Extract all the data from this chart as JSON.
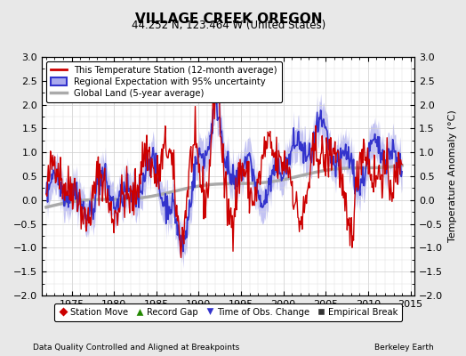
{
  "title": "VILLAGE CREEK OREGON",
  "subtitle": "44.252 N, 123.464 W (United States)",
  "ylabel": "Temperature Anomaly (°C)",
  "xlabel_bottom_left": "Data Quality Controlled and Aligned at Breakpoints",
  "xlabel_bottom_right": "Berkeley Earth",
  "xlim": [
    1971.5,
    2015.5
  ],
  "ylim": [
    -2.0,
    3.0
  ],
  "yticks": [
    -2,
    -1.5,
    -1,
    -0.5,
    0,
    0.5,
    1,
    1.5,
    2,
    2.5,
    3
  ],
  "xticks": [
    1975,
    1980,
    1985,
    1990,
    1995,
    2000,
    2005,
    2010,
    2015
  ],
  "bg_color": "#e8e8e8",
  "plot_bg_color": "#ffffff",
  "station_color": "#cc0000",
  "regional_color": "#3333cc",
  "regional_fill_color": "#aaaaee",
  "global_color": "#aaaaaa",
  "legend1_entries": [
    {
      "label": "This Temperature Station (12-month average)",
      "color": "#cc0000",
      "lw": 2
    },
    {
      "label": "Regional Expectation with 95% uncertainty",
      "color": "#3333cc",
      "lw": 2
    },
    {
      "label": "Global Land (5-year average)",
      "color": "#aaaaaa",
      "lw": 2
    }
  ],
  "legend2_entries": [
    {
      "label": "Station Move",
      "marker": "D",
      "color": "#cc0000"
    },
    {
      "label": "Record Gap",
      "marker": "^",
      "color": "#228800"
    },
    {
      "label": "Time of Obs. Change",
      "marker": "v",
      "color": "#3333cc"
    },
    {
      "label": "Empirical Break",
      "marker": "s",
      "color": "#333333"
    }
  ]
}
